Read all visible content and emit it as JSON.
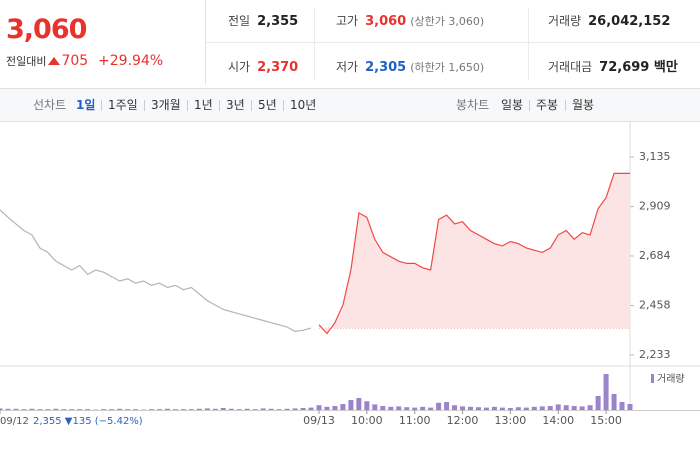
{
  "quote": {
    "price": "3,060",
    "change_label": "전일대비",
    "change": "705",
    "change_rate": "+29.94%"
  },
  "summary": {
    "rows": [
      [
        {
          "label": "전일",
          "value": "2,355"
        },
        {
          "label": "고가",
          "value": "3,060",
          "note": "(상한가 3,060)"
        },
        {
          "label": "거래량",
          "value": "26,042,152"
        }
      ],
      [
        {
          "label": "시가",
          "value": "2,370"
        },
        {
          "label": "저가",
          "value": "2,305",
          "note": "(하한가 1,650)"
        },
        {
          "label": "거래대금",
          "value": "72,699 백만"
        }
      ]
    ]
  },
  "tabs": {
    "line_label": "선차트",
    "line": [
      "1일",
      "1주일",
      "3개월",
      "1년",
      "3년",
      "5년",
      "10년"
    ],
    "candle_label": "봉차트",
    "candle": [
      "일봉",
      "주봉",
      "월봉"
    ]
  },
  "chart_data": {
    "type": "line",
    "categories": [
      "09/12",
      null,
      null,
      null,
      null,
      null,
      null,
      null,
      null,
      null,
      null,
      null,
      null,
      null,
      null,
      null,
      null,
      null,
      null,
      null,
      null,
      null,
      null,
      null,
      null,
      null,
      null,
      null,
      null,
      null,
      null,
      null,
      null,
      null,
      null,
      null,
      null,
      null,
      null,
      null,
      "09/13",
      null,
      null,
      null,
      null,
      null,
      "10:00",
      null,
      null,
      null,
      null,
      null,
      "11:00",
      null,
      null,
      null,
      null,
      null,
      "12:00",
      null,
      null,
      null,
      null,
      null,
      "13:00",
      null,
      null,
      null,
      null,
      null,
      "14:00",
      null,
      null,
      null,
      null,
      null,
      "15:00",
      null,
      null,
      null
    ],
    "series": [
      {
        "color": "#b4b4b4",
        "values": [
          2894,
          2860,
          2830,
          2800,
          2780,
          2720,
          2700,
          2660,
          2640,
          2620,
          2640,
          2600,
          2620,
          2610,
          2590,
          2570,
          2580,
          2560,
          2570,
          2550,
          2560,
          2540,
          2550,
          2530,
          2540,
          2510,
          2480,
          2460,
          2440,
          2430,
          2420,
          2410,
          2400,
          2390,
          2380,
          2370,
          2360,
          2340,
          2345,
          2355,
          null,
          null,
          null,
          null,
          null,
          null,
          null,
          null,
          null,
          null,
          null,
          null,
          null,
          null,
          null,
          null,
          null,
          null,
          null,
          null,
          null,
          null,
          null,
          null,
          null,
          null,
          null,
          null,
          null,
          null,
          null,
          null,
          null,
          null,
          null,
          null,
          null,
          null,
          null,
          null
        ]
      },
      {
        "color": "#f04848",
        "fill": "#fde4e4",
        "values": [
          null,
          null,
          null,
          null,
          null,
          null,
          null,
          null,
          null,
          null,
          null,
          null,
          null,
          null,
          null,
          null,
          null,
          null,
          null,
          null,
          null,
          null,
          null,
          null,
          null,
          null,
          null,
          null,
          null,
          null,
          null,
          null,
          null,
          null,
          null,
          null,
          null,
          null,
          null,
          null,
          2370,
          2330,
          2380,
          2460,
          2620,
          2880,
          2860,
          2760,
          2700,
          2680,
          2660,
          2650,
          2650,
          2630,
          2620,
          2850,
          2870,
          2830,
          2840,
          2800,
          2780,
          2760,
          2740,
          2730,
          2750,
          2740,
          2720,
          2710,
          2700,
          2720,
          2780,
          2800,
          2760,
          2790,
          2780,
          2900,
          2950,
          3060,
          3060,
          3060
        ]
      }
    ],
    "reference_line": 2355,
    "annotation": "2,355 ▼135 (−5.42%)",
    "ylim": [
      2187,
      3258
    ],
    "yticks": [
      {
        "value": 3135,
        "label": "3,135"
      },
      {
        "value": 2909,
        "label": "2,909"
      },
      {
        "value": 2684,
        "label": "2,684"
      },
      {
        "value": 2458,
        "label": "2,458"
      },
      {
        "value": 2233,
        "label": "2,233"
      }
    ],
    "grid": false,
    "volume": {
      "name": "거래량",
      "color": "#9c84cc",
      "ylim": [
        0,
        100
      ],
      "values": [
        4,
        3,
        3,
        2,
        3,
        2,
        2,
        3,
        2,
        2,
        2,
        2,
        1,
        2,
        2,
        3,
        2,
        2,
        1,
        2,
        2,
        3,
        2,
        2,
        2,
        3,
        4,
        3,
        5,
        3,
        2,
        3,
        2,
        4,
        3,
        2,
        3,
        4,
        5,
        6,
        12,
        8,
        10,
        15,
        25,
        30,
        22,
        14,
        10,
        8,
        9,
        7,
        6,
        8,
        6,
        18,
        20,
        12,
        9,
        8,
        7,
        6,
        8,
        6,
        5,
        7,
        6,
        8,
        9,
        10,
        14,
        12,
        10,
        9,
        12,
        35,
        90,
        40,
        20,
        15
      ]
    }
  }
}
